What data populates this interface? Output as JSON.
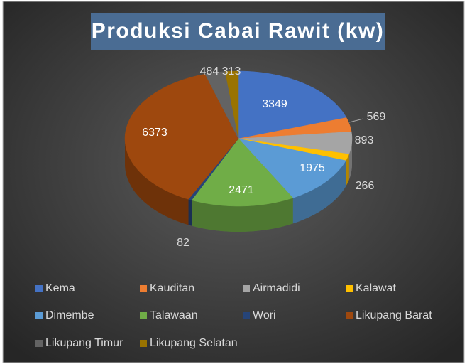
{
  "chart_data": {
    "type": "pie",
    "title": "Produksi Cabai Rawit (kw)",
    "categories": [
      "Kema",
      "Kauditan",
      "Airmadidi",
      "Kalawat",
      "Dimembe",
      "Talawaan",
      "Wori",
      "Likupang Barat",
      "Likupang Timur",
      "Likupang Selatan"
    ],
    "values": [
      3349,
      569,
      893,
      266,
      1975,
      2471,
      82,
      6373,
      484,
      313
    ],
    "colors": [
      "#4472c4",
      "#ed7d31",
      "#a5a5a5",
      "#ffc000",
      "#5b9bd5",
      "#70ad47",
      "#264478",
      "#9e480e",
      "#636363",
      "#997300"
    ],
    "legend": "bottom"
  }
}
